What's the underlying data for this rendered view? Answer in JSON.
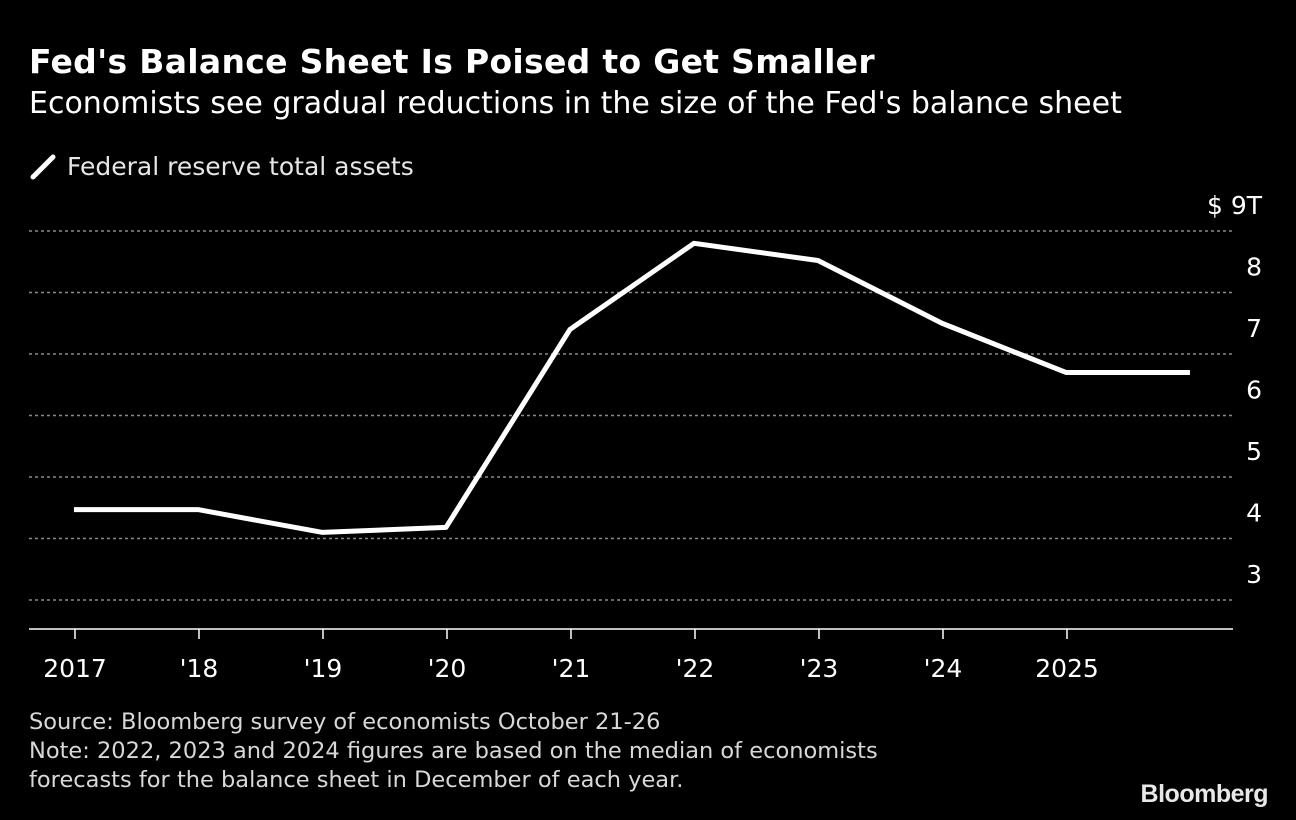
{
  "chart_data": {
    "type": "line",
    "title": "Fed's Balance Sheet Is Poised to Get Smaller",
    "subtitle": "Economists see gradual reductions in the size of the Fed's balance sheet",
    "series": [
      {
        "name": "Federal reserve total assets",
        "color": "#ffffff",
        "x": [
          "2016-12",
          "2017-12",
          "2018-12",
          "2019-12",
          "2020-12",
          "2021-12",
          "2022-12",
          "2023-12",
          "2024-12",
          "2025-12"
        ],
        "values": [
          4.47,
          4.47,
          4.1,
          4.18,
          7.4,
          8.8,
          8.52,
          7.5,
          6.7,
          6.7
        ]
      }
    ],
    "xlim": [
      2017,
      2026
    ],
    "ylim": [
      2.5,
      9
    ],
    "x_ticks": [
      {
        "year": 2017,
        "label": "2017"
      },
      {
        "year": 2018,
        "label": "'18"
      },
      {
        "year": 2019,
        "label": "'19"
      },
      {
        "year": 2020,
        "label": "'20"
      },
      {
        "year": 2021,
        "label": "'21"
      },
      {
        "year": 2022,
        "label": "'22"
      },
      {
        "year": 2023,
        "label": "'23"
      },
      {
        "year": 2024,
        "label": "'24"
      },
      {
        "year": 2025,
        "label": "2025"
      }
    ],
    "y_ticks": [
      {
        "value": 9,
        "label": "$ 9T"
      },
      {
        "value": 8,
        "label": "8"
      },
      {
        "value": 7,
        "label": "7"
      },
      {
        "value": 6,
        "label": "6"
      },
      {
        "value": 5,
        "label": "5"
      },
      {
        "value": 4,
        "label": "4"
      },
      {
        "value": 3,
        "label": "3"
      }
    ],
    "y_axis_side": "right",
    "grid": "horizontal dotted",
    "legend_placement": "top-left",
    "gridline_color": "#8a8a8a"
  },
  "footer": {
    "source": "Source: Bloomberg survey of economists October 21-26",
    "note_line1": "Note: 2022, 2023 and 2024 figures are based on the median of economists",
    "note_line2": "forecasts for the balance sheet in December of each year."
  },
  "logo": "Bloomberg"
}
